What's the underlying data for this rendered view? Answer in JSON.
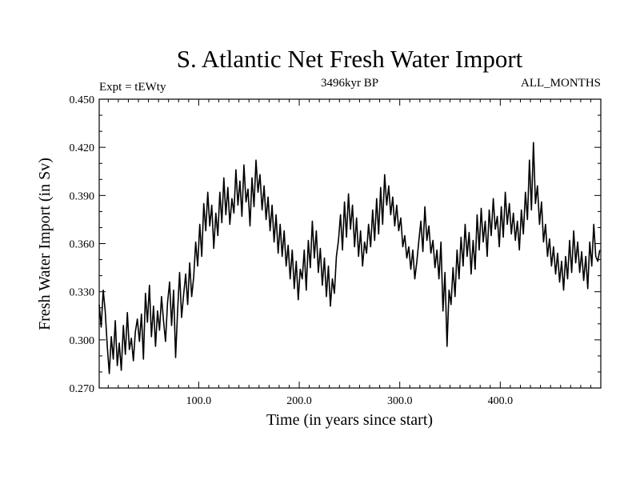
{
  "chart_data": {
    "type": "line",
    "title": "S. Atlantic Net Fresh Water Import",
    "subtitle_left": "Expt = tEWty",
    "subtitle_center": "3496kyr BP",
    "subtitle_right": "ALL_MONTHS",
    "xlabel": "Time (in years since start)",
    "ylabel": "Fresh Water Import (in Sv)",
    "xlim": [
      1,
      500
    ],
    "ylim": [
      0.27,
      0.45
    ],
    "x_ticks": [
      100,
      200,
      300,
      400
    ],
    "x_tick_labels": [
      "100.0",
      "200.0",
      "300.0",
      "400.0"
    ],
    "y_ticks": [
      0.27,
      0.3,
      0.33,
      0.36,
      0.39,
      0.42,
      0.45
    ],
    "y_tick_labels": [
      "0.270",
      "0.300",
      "0.330",
      "0.360",
      "0.390",
      "0.420",
      "0.450"
    ],
    "x_start": 1,
    "x_step": 2,
    "series": [
      {
        "name": "Fresh Water Import",
        "values": [
          0.322,
          0.308,
          0.331,
          0.318,
          0.296,
          0.279,
          0.302,
          0.288,
          0.312,
          0.284,
          0.298,
          0.281,
          0.309,
          0.291,
          0.317,
          0.294,
          0.301,
          0.287,
          0.305,
          0.313,
          0.299,
          0.316,
          0.288,
          0.329,
          0.311,
          0.334,
          0.302,
          0.321,
          0.296,
          0.318,
          0.306,
          0.327,
          0.312,
          0.299,
          0.323,
          0.336,
          0.309,
          0.331,
          0.289,
          0.318,
          0.342,
          0.314,
          0.328,
          0.341,
          0.322,
          0.348,
          0.327,
          0.339,
          0.361,
          0.346,
          0.372,
          0.352,
          0.385,
          0.368,
          0.392,
          0.371,
          0.384,
          0.357,
          0.379,
          0.365,
          0.392,
          0.373,
          0.401,
          0.378,
          0.395,
          0.372,
          0.388,
          0.379,
          0.406,
          0.384,
          0.399,
          0.377,
          0.409,
          0.386,
          0.394,
          0.371,
          0.401,
          0.383,
          0.412,
          0.392,
          0.403,
          0.381,
          0.396,
          0.375,
          0.389,
          0.368,
          0.384,
          0.361,
          0.378,
          0.354,
          0.372,
          0.352,
          0.368,
          0.346,
          0.359,
          0.338,
          0.356,
          0.332,
          0.349,
          0.325,
          0.344,
          0.338,
          0.356,
          0.331,
          0.362,
          0.345,
          0.374,
          0.351,
          0.368,
          0.342,
          0.357,
          0.334,
          0.351,
          0.327,
          0.346,
          0.321,
          0.338,
          0.329,
          0.352,
          0.362,
          0.378,
          0.356,
          0.386,
          0.364,
          0.391,
          0.369,
          0.384,
          0.358,
          0.376,
          0.352,
          0.368,
          0.346,
          0.361,
          0.354,
          0.372,
          0.358,
          0.381,
          0.362,
          0.388,
          0.366,
          0.395,
          0.372,
          0.403,
          0.384,
          0.396,
          0.378,
          0.389,
          0.371,
          0.384,
          0.368,
          0.376,
          0.358,
          0.365,
          0.351,
          0.358,
          0.344,
          0.356,
          0.338,
          0.349,
          0.362,
          0.374,
          0.355,
          0.383,
          0.362,
          0.371,
          0.354,
          0.362,
          0.345,
          0.356,
          0.338,
          0.361,
          0.318,
          0.342,
          0.296,
          0.331,
          0.322,
          0.345,
          0.327,
          0.356,
          0.338,
          0.364,
          0.346,
          0.372,
          0.352,
          0.367,
          0.341,
          0.362,
          0.344,
          0.378,
          0.356,
          0.382,
          0.361,
          0.374,
          0.352,
          0.381,
          0.365,
          0.388,
          0.369,
          0.377,
          0.358,
          0.383,
          0.364,
          0.392,
          0.372,
          0.385,
          0.366,
          0.379,
          0.362,
          0.374,
          0.356,
          0.381,
          0.366,
          0.392,
          0.375,
          0.412,
          0.381,
          0.423,
          0.385,
          0.396,
          0.372,
          0.386,
          0.361,
          0.372,
          0.352,
          0.363,
          0.346,
          0.358,
          0.341,
          0.354,
          0.336,
          0.349,
          0.331,
          0.352,
          0.338,
          0.362,
          0.342,
          0.368,
          0.348,
          0.361,
          0.342,
          0.355,
          0.337,
          0.352,
          0.332,
          0.361,
          0.346,
          0.372,
          0.352,
          0.349,
          0.356
        ],
        "color": "#000000"
      }
    ]
  }
}
